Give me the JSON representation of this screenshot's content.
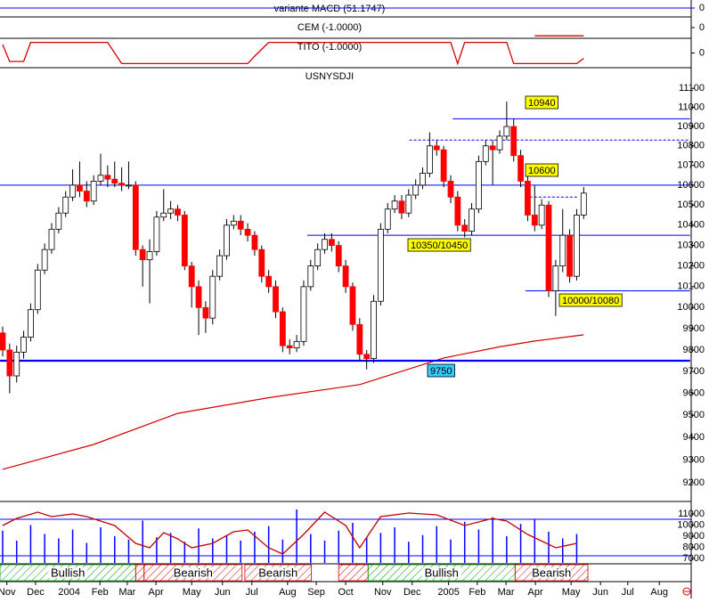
{
  "chart_data": [
    {
      "type": "indicator",
      "title": "variante MACD (51.1747)",
      "ylim": [
        -1,
        1
      ],
      "yticks": [
        0
      ]
    },
    {
      "type": "line",
      "title": "CEM (-1.0000)",
      "ylim": [
        -1.2,
        1.2
      ],
      "yticks": [
        0
      ],
      "x": [
        76,
        83
      ],
      "values": [
        -1,
        -1
      ],
      "color": "#d00000"
    },
    {
      "type": "line",
      "title": "TITO (-1.0000)",
      "ylim": [
        -1.3,
        1.3
      ],
      "yticks": [
        0
      ],
      "x": [
        0,
        1,
        3,
        4,
        15,
        17,
        35,
        36,
        38,
        64,
        65,
        66,
        72,
        73,
        82,
        83
      ],
      "values": [
        0.8,
        -0.8,
        -0.8,
        1,
        1,
        -1,
        -1,
        -0.3,
        1,
        1,
        -1,
        1,
        1,
        -1,
        -1,
        -0.5
      ],
      "color": "#d00000"
    },
    {
      "type": "candlestick",
      "title": "USNYSDJI",
      "log_scale": true,
      "ylim": [
        9130,
        11200
      ],
      "yticks": [
        11100,
        11000,
        10900,
        10800,
        10700,
        10600,
        10500,
        10400,
        10300,
        10200,
        10100,
        10000,
        9900,
        9800,
        9700,
        9600,
        9500,
        9400,
        9300,
        9200
      ],
      "xlim": [
        -0.38,
        100.9
      ],
      "xticks": [
        {
          "value": 0.6,
          "label": "Nov"
        },
        {
          "value": 4.7,
          "label": "Dec"
        },
        {
          "value": 9.5,
          "label": "2004"
        },
        {
          "value": 13.9,
          "label": "Feb"
        },
        {
          "value": 17.8,
          "label": "Mar"
        },
        {
          "value": 21.9,
          "label": "Apr"
        },
        {
          "value": 27.0,
          "label": "May"
        },
        {
          "value": 31.4,
          "label": "Jun"
        },
        {
          "value": 35.6,
          "label": "Jul"
        },
        {
          "value": 40.7,
          "label": "Aug"
        },
        {
          "value": 44.8,
          "label": "Sep"
        },
        {
          "value": 49.0,
          "label": "Oct"
        },
        {
          "value": 54.3,
          "label": "Nov"
        },
        {
          "value": 58.5,
          "label": "Dec"
        },
        {
          "value": 63.7,
          "label": "2005"
        },
        {
          "value": 67.8,
          "label": "Feb"
        },
        {
          "value": 71.9,
          "label": "Mar"
        },
        {
          "value": 76.1,
          "label": "Apr"
        },
        {
          "value": 81.2,
          "label": "May"
        },
        {
          "value": 85.4,
          "label": "Jun"
        },
        {
          "value": 89.3,
          "label": "Jul"
        },
        {
          "value": 93.8,
          "label": "Aug"
        }
      ],
      "up_color": "#ffffff",
      "down_color": "#ff0000",
      "x": [
        0,
        1,
        2,
        3,
        4,
        5,
        6,
        7,
        8,
        9,
        10,
        11,
        12,
        13,
        14,
        15,
        16,
        17,
        18,
        19,
        20,
        21,
        22,
        23,
        24,
        25,
        26,
        27,
        28,
        29,
        30,
        31,
        32,
        33,
        34,
        35,
        36,
        37,
        38,
        39,
        40,
        41,
        42,
        43,
        44,
        45,
        46,
        47,
        48,
        49,
        50,
        51,
        52,
        53,
        54,
        55,
        56,
        57,
        58,
        59,
        60,
        61,
        62,
        63,
        64,
        65,
        66,
        67,
        68,
        69,
        70,
        71,
        72,
        73,
        74,
        75,
        76,
        77,
        78,
        79,
        80,
        81,
        82,
        83
      ],
      "open": [
        9880,
        9800,
        9680,
        9790,
        9860,
        9990,
        10180,
        10280,
        10380,
        10460,
        10540,
        10600,
        10570,
        10520,
        10620,
        10650,
        10630,
        10610,
        10600,
        10600,
        10280,
        10230,
        10270,
        10440,
        10460,
        10480,
        10450,
        10200,
        10100,
        10000,
        9950,
        10150,
        10250,
        10400,
        10420,
        10380,
        10350,
        10280,
        10150,
        10100,
        9980,
        9820,
        9810,
        9840,
        10100,
        10200,
        10280,
        10330,
        10300,
        10200,
        10100,
        9920,
        9780,
        9760,
        10030,
        10380,
        10480,
        10520,
        10460,
        10550,
        10600,
        10660,
        10800,
        10780,
        10620,
        10540,
        10400,
        10370,
        10480,
        10720,
        10800,
        10780,
        10850,
        10900,
        10750,
        10620,
        10450,
        10400,
        10500,
        10080,
        10200,
        10350,
        10150,
        10450
      ],
      "high": [
        9910,
        9830,
        9820,
        9890,
        10020,
        10210,
        10310,
        10410,
        10490,
        10570,
        10680,
        10720,
        10620,
        10650,
        10760,
        10700,
        10720,
        10690,
        10720,
        10620,
        10300,
        10330,
        10470,
        10580,
        10520,
        10500,
        10470,
        10220,
        10130,
        10030,
        10180,
        10280,
        10430,
        10450,
        10450,
        10410,
        10370,
        10300,
        10180,
        10130,
        10000,
        9850,
        9870,
        10130,
        10230,
        10310,
        10360,
        10360,
        10320,
        10230,
        10120,
        9950,
        9800,
        10060,
        10410,
        10510,
        10550,
        10550,
        10580,
        10630,
        10690,
        10870,
        10830,
        10800,
        10650,
        10570,
        10430,
        10510,
        10750,
        10830,
        10830,
        10880,
        11030,
        10940,
        10780,
        10650,
        10600,
        10530,
        10520,
        10230,
        10480,
        10380,
        10480,
        10590
      ],
      "low": [
        9770,
        9600,
        9650,
        9760,
        9840,
        9970,
        10160,
        10260,
        10360,
        10440,
        10520,
        10540,
        10490,
        10500,
        10600,
        10590,
        10590,
        10570,
        10580,
        10250,
        10100,
        10020,
        10250,
        10420,
        10430,
        10420,
        10180,
        10000,
        9870,
        9880,
        9920,
        10130,
        10230,
        10380,
        10350,
        10320,
        10250,
        10120,
        10070,
        9950,
        9790,
        9780,
        9790,
        9820,
        10080,
        10180,
        10260,
        10270,
        10170,
        10070,
        9890,
        9750,
        9710,
        9740,
        10010,
        10360,
        10460,
        10430,
        10440,
        10530,
        10580,
        10640,
        10750,
        10590,
        10510,
        10370,
        10340,
        10350,
        10460,
        10700,
        10600,
        10760,
        10830,
        10720,
        10590,
        10420,
        10370,
        10380,
        10050,
        9960,
        10170,
        10120,
        10130,
        10430
      ],
      "close": [
        9800,
        9680,
        9790,
        9860,
        9990,
        10180,
        10280,
        10380,
        10460,
        10540,
        10600,
        10570,
        10520,
        10620,
        10650,
        10630,
        10610,
        10600,
        10600,
        10280,
        10230,
        10270,
        10440,
        10460,
        10480,
        10450,
        10200,
        10100,
        10000,
        9950,
        10150,
        10250,
        10400,
        10420,
        10380,
        10350,
        10280,
        10150,
        10100,
        9980,
        9820,
        9810,
        9840,
        10100,
        10200,
        10280,
        10330,
        10300,
        10200,
        10100,
        9920,
        9780,
        9760,
        10030,
        10380,
        10480,
        10520,
        10460,
        10550,
        10600,
        10660,
        10800,
        10780,
        10620,
        10540,
        10400,
        10370,
        10480,
        10720,
        10800,
        10780,
        10850,
        10900,
        10750,
        10620,
        10450,
        10400,
        10500,
        10080,
        10200,
        10350,
        10150,
        10450,
        10560
      ],
      "moving_average": {
        "color": "#d00000",
        "x": [
          0,
          13,
          25,
          38,
          51,
          63,
          71,
          76,
          83
        ],
        "values": [
          9259,
          9369,
          9509,
          9580,
          9640,
          9763,
          9815,
          9842,
          9871
        ]
      },
      "levels": [
        {
          "value": 9750,
          "from": -0.38,
          "to": 98.2,
          "color": "#0000ff",
          "dashed": false
        },
        {
          "value": 10600,
          "from": -0.38,
          "to": 98.2,
          "color": "#0000ff",
          "dashed": false
        },
        {
          "value": 10940,
          "from": 64.3,
          "to": 98.2,
          "color": "#0000ff",
          "dashed": false
        },
        {
          "value": 10350,
          "from": 43.5,
          "to": 98.2,
          "color": "#0000ff",
          "dashed": false
        },
        {
          "value": 10080,
          "from": 74.7,
          "to": 98.2,
          "color": "#0000ff",
          "dashed": false
        },
        {
          "value": 10830,
          "from": 58.1,
          "to": 98.2,
          "color": "#0000ff",
          "dashed": true
        },
        {
          "value": 10540,
          "from": 75.3,
          "to": 82.3,
          "color": "#0000ff",
          "dashed": true
        }
      ],
      "annotations": [
        {
          "text": "10940",
          "color": "#ffff00"
        },
        {
          "text": "10600",
          "color": "#ffff00"
        },
        {
          "text": "10350/10450",
          "color": "#ffff00"
        },
        {
          "text": "10000/10080",
          "color": "#ffff00"
        },
        {
          "text": "9750",
          "color": "#33ccff"
        }
      ]
    },
    {
      "type": "oscillator",
      "ylim": [
        6600,
        11880
      ],
      "yticks": [
        11000,
        10000,
        9000,
        8000,
        7000
      ],
      "levels": [
        10520,
        7240
      ],
      "level_color": "#0000ff",
      "bars": {
        "color": "#0000ff",
        "x": [
          0,
          2,
          4,
          6,
          8,
          10,
          12,
          14,
          16,
          18,
          20,
          22,
          24,
          26,
          28,
          30,
          32,
          34,
          36,
          38,
          40,
          42,
          44,
          46,
          48,
          50,
          52,
          54,
          56,
          58,
          60,
          62,
          64,
          66,
          68,
          70,
          72,
          74,
          76,
          78,
          80,
          82
        ],
        "values": [
          9500,
          8600,
          10000,
          9200,
          8800,
          9600,
          8400,
          9800,
          9000,
          8700,
          10400,
          8900,
          9300,
          8500,
          9700,
          8800,
          9100,
          8600,
          9400,
          9900,
          8700,
          11400,
          9200,
          8600,
          9500,
          10200,
          8900,
          9300,
          9800,
          8500,
          9100,
          9900,
          8700,
          10300,
          9600,
          10700,
          9000,
          10100,
          10500,
          9400,
          8800,
          9200
        ]
      },
      "oscillator": {
        "color": "#c00000",
        "x": [
          0,
          2,
          5,
          7,
          10,
          12,
          16,
          19,
          21,
          23,
          25,
          27,
          30,
          33,
          35,
          38,
          40,
          43,
          46,
          49,
          51,
          54,
          58,
          62,
          66,
          70,
          72,
          75,
          79,
          82
        ],
        "values": [
          9960,
          10600,
          11160,
          10760,
          11000,
          10760,
          9960,
          8360,
          7960,
          9320,
          8760,
          7960,
          8360,
          9400,
          9560,
          7960,
          7400,
          9160,
          11160,
          9960,
          7960,
          10760,
          11080,
          10920,
          9960,
          10600,
          10360,
          9160,
          7960,
          8360
        ]
      },
      "signals": [
        {
          "label": "Bullish",
          "from": -0.38,
          "to": 19.0,
          "color": "#00a000"
        },
        {
          "label": null,
          "from": 19.0,
          "to": 20.2,
          "color": "#e00000"
        },
        {
          "label": "Bearish",
          "from": 20.2,
          "to": 34.2,
          "color": "#e00000"
        },
        {
          "label": "Bearish",
          "from": 34.6,
          "to": 44.1,
          "color": "#e00000"
        },
        {
          "label": null,
          "from": 48.0,
          "to": 52.2,
          "color": "#e00000"
        },
        {
          "label": "Bullish",
          "from": 52.2,
          "to": 73.2,
          "color": "#00a000"
        },
        {
          "label": "Bearish",
          "from": 73.2,
          "to": 83.6,
          "color": "#e00000"
        }
      ]
    }
  ]
}
